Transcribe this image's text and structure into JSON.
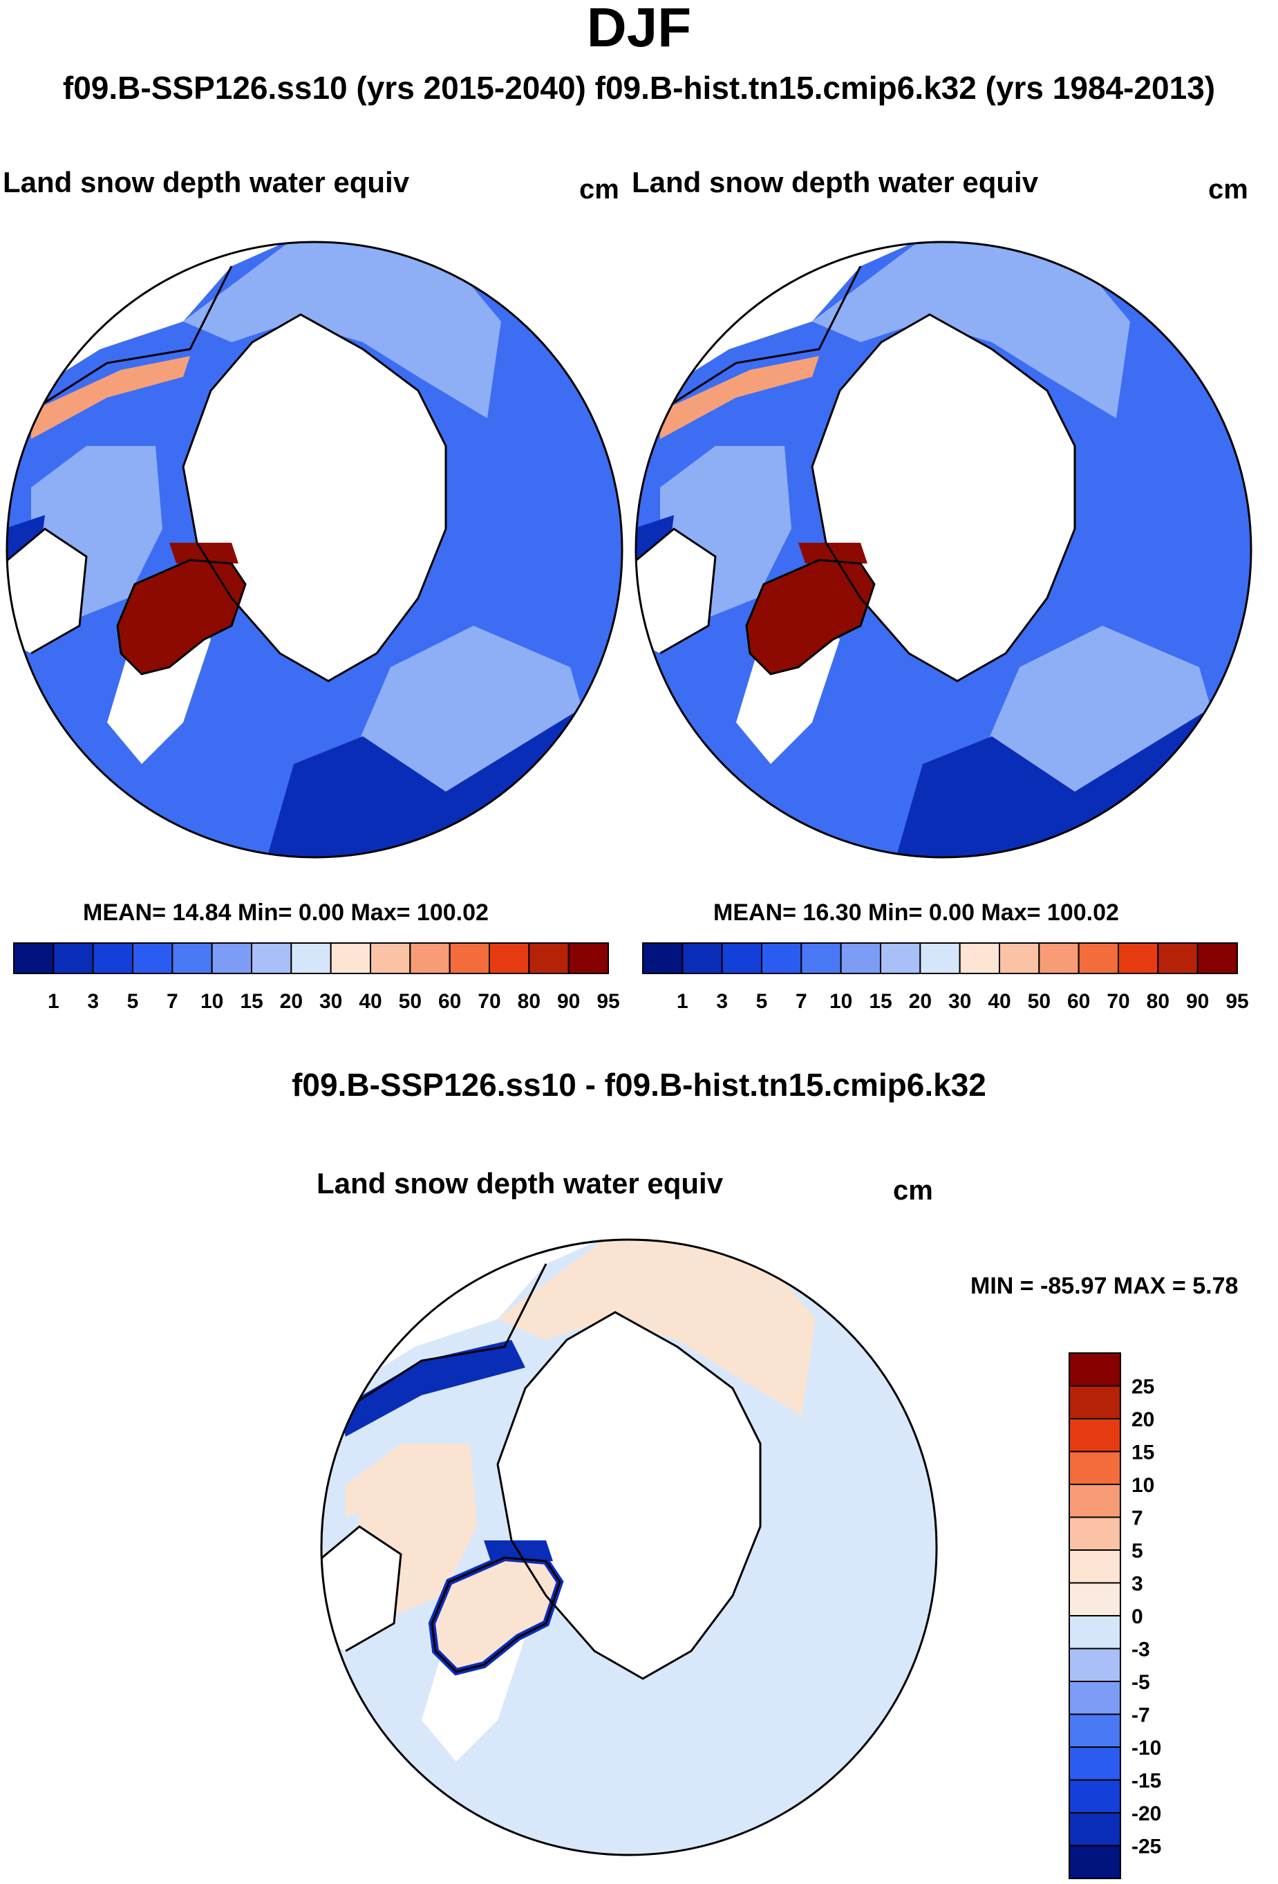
{
  "title": "DJF",
  "subtitle": "f09.B-SSP126.ss10 (yrs 2015-2040)  f09.B-hist.tn15.cmip6.k32 (yrs 1984-2013)",
  "chart_data": [
    {
      "type": "heatmap",
      "projection": "north polar stereographic",
      "title": "Land snow depth water equiv",
      "units": "cm",
      "case": "f09.B-SSP126.ss10 (yrs 2015-2040)",
      "stats": {
        "mean_label": "MEAN=",
        "mean": "14.84",
        "min_label": "Min=",
        "min": "0.00",
        "max_label": "Max=",
        "max": "100.02"
      },
      "colorbar": {
        "orientation": "horizontal",
        "labels": [
          "1",
          "3",
          "5",
          "7",
          "10",
          "15",
          "20",
          "30",
          "40",
          "50",
          "60",
          "70",
          "80",
          "90",
          "95"
        ],
        "colors": [
          "#00137f",
          "#0a2db8",
          "#1340d8",
          "#2b5cf0",
          "#4a79f5",
          "#7c9cf5",
          "#a9bff7",
          "#d6e6fa",
          "#fde4d3",
          "#fbc2a6",
          "#f79c75",
          "#f26c3c",
          "#e63b10",
          "#b62207",
          "#870000"
        ]
      }
    },
    {
      "type": "heatmap",
      "projection": "north polar stereographic",
      "title": "Land snow depth water equiv",
      "units": "cm",
      "case": "f09.B-hist.tn15.cmip6.k32 (yrs 1984-2013)",
      "stats": {
        "mean_label": "MEAN=",
        "mean": "16.30",
        "min_label": "Min=",
        "min": "0.00",
        "max_label": "Max=",
        "max": "100.02"
      },
      "colorbar": {
        "orientation": "horizontal",
        "labels": [
          "1",
          "3",
          "5",
          "7",
          "10",
          "15",
          "20",
          "30",
          "40",
          "50",
          "60",
          "70",
          "80",
          "90",
          "95"
        ],
        "colors": [
          "#00137f",
          "#0a2db8",
          "#1340d8",
          "#2b5cf0",
          "#4a79f5",
          "#7c9cf5",
          "#a9bff7",
          "#d6e6fa",
          "#fde4d3",
          "#fbc2a6",
          "#f79c75",
          "#f26c3c",
          "#e63b10",
          "#b62207",
          "#870000"
        ]
      }
    },
    {
      "type": "heatmap",
      "projection": "north polar stereographic",
      "heading": "f09.B-SSP126.ss10 - f09.B-hist.tn15.cmip6.k32",
      "title": "Land snow depth water equiv",
      "units": "cm",
      "minmax_text": "MIN = -85.97 MAX =   5.78",
      "colorbar": {
        "orientation": "vertical",
        "labels": [
          "25",
          "20",
          "15",
          "10",
          "7",
          "5",
          "3",
          "0",
          "-3",
          "-5",
          "-7",
          "-10",
          "-15",
          "-20",
          "-25"
        ],
        "colors": [
          "#870000",
          "#b62207",
          "#e63b10",
          "#f26c3c",
          "#f79c75",
          "#fbc2a6",
          "#fde4d3",
          "#fbeadf",
          "#d6e6fa",
          "#a9bff7",
          "#7c9cf5",
          "#4a79f5",
          "#2b5cf0",
          "#1340d8",
          "#0a2db8",
          "#00137f"
        ]
      }
    }
  ],
  "map_colors": {
    "ocean": "#ffffff",
    "snow_blue_dark": "#0a2db8",
    "snow_blue_mid": "#3d6df2",
    "snow_blue_light": "#8eaef6",
    "greenland": "#8d0a00",
    "diff_land": "#fbe3d2",
    "diff_land_cool": "#d8e8fa"
  }
}
